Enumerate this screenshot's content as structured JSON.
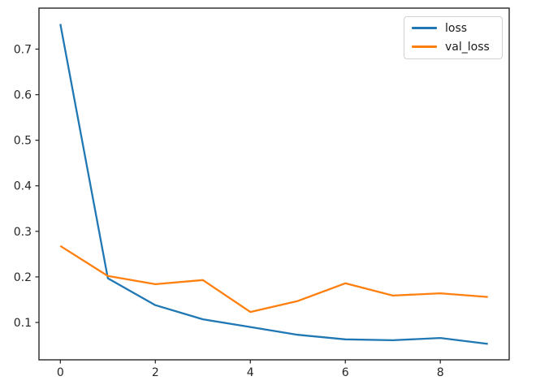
{
  "figure": {
    "background": "#ffffff",
    "frame_color": "#262626",
    "tick_label_color": "#262626"
  },
  "chart_data": {
    "type": "line",
    "title": "",
    "xlabel": "",
    "ylabel": "",
    "x": [
      0,
      1,
      2,
      3,
      4,
      5,
      6,
      7,
      8,
      9
    ],
    "series": [
      {
        "name": "loss",
        "color": "#1f77b4",
        "values": [
          0.755,
          0.197,
          0.138,
          0.107,
          0.09,
          0.073,
          0.063,
          0.061,
          0.066,
          0.053
        ]
      },
      {
        "name": "val_loss",
        "color": "#ff7f0e",
        "values": [
          0.268,
          0.202,
          0.184,
          0.193,
          0.123,
          0.147,
          0.186,
          0.159,
          0.164,
          0.156
        ]
      }
    ],
    "xticks": [
      0,
      2,
      4,
      6,
      8
    ],
    "yticks": [
      0.1,
      0.2,
      0.3,
      0.4,
      0.5,
      0.6,
      0.7
    ],
    "xlim": [
      -0.45,
      9.45
    ],
    "ylim": [
      0.018,
      0.79
    ],
    "grid": false,
    "legend_position": "upper right"
  }
}
